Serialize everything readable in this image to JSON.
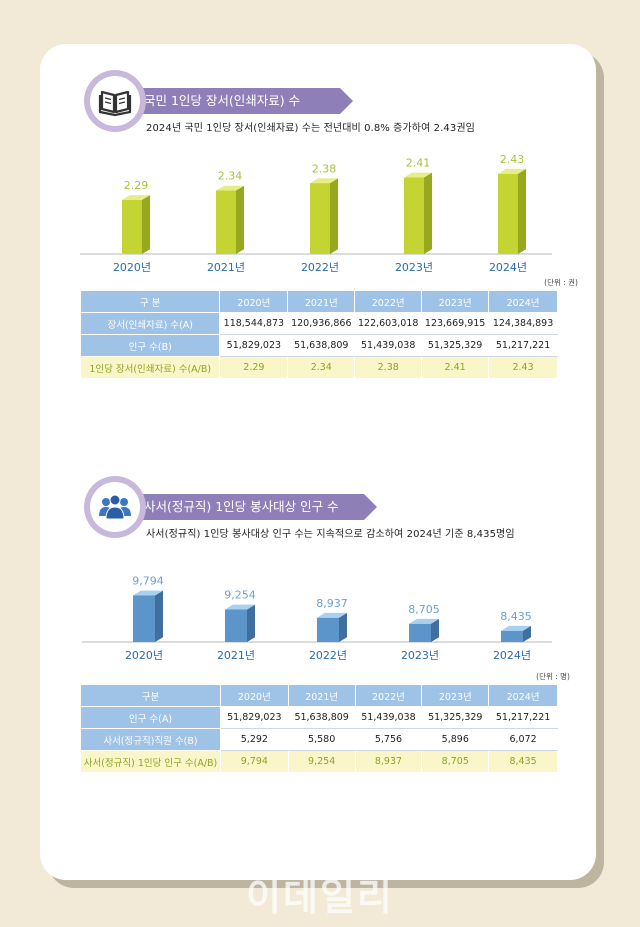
{
  "section1": {
    "title": "국민 1인당 장서(인쇄자료) 수",
    "subtitle": "2024년 국민 1인당 장서(인쇄자료) 수는 전년대비 0.8% 증가하여 2.43권임",
    "icon": "book-icon",
    "unit": "(단위 : 권)",
    "table": {
      "header": [
        "구 분",
        "2020년",
        "2021년",
        "2022년",
        "2023년",
        "2024년"
      ],
      "rows": [
        {
          "label": "장서(인쇄자료) 수(A)",
          "values": [
            "118,544,873",
            "120,936,866",
            "122,603,018",
            "123,669,915",
            "124,384,893"
          ]
        },
        {
          "label": "인구 수(B)",
          "values": [
            "51,829,023",
            "51,638,809",
            "51,439,038",
            "51,325,329",
            "51,217,221"
          ]
        }
      ],
      "result": {
        "label": "1인당 장서(인쇄자료) 수(A/B)",
        "values": [
          "2.29",
          "2.34",
          "2.38",
          "2.41",
          "2.43"
        ]
      }
    }
  },
  "section2": {
    "title": "사서(정규직) 1인당 봉사대상 인구 수",
    "subtitle": "사서(정규직) 1인당 봉사대상 인구 수는 지속적으로 감소하여 2024년 기준  8,435명임",
    "icon": "people-icon",
    "unit": "(단위 : 명)",
    "table": {
      "header": [
        "구분",
        "2020년",
        "2021년",
        "2022년",
        "2023년",
        "2024년"
      ],
      "rows": [
        {
          "label": "인구 수(A)",
          "values": [
            "51,829,023",
            "51,638,809",
            "51,439,038",
            "51,325,329",
            "51,217,221"
          ]
        },
        {
          "label": "사서(정규직)직원 수(B)",
          "values": [
            "5,292",
            "5,580",
            "5,756",
            "5,896",
            "6,072"
          ]
        }
      ],
      "result": {
        "label": "사서(정규직) 1인당 인구 수(A/B)",
        "values": [
          "9,794",
          "9,254",
          "8,937",
          "8,705",
          "8,435"
        ]
      }
    }
  },
  "colors": {
    "banner": "#8f7fb8",
    "icon_ring": "#c7b8dc",
    "bar1_front": "#c4d433",
    "bar1_side": "#97a81f",
    "bar1_top": "#e6ee8a",
    "bar1_label": "#a7c23a",
    "bar2_front": "#5b95c9",
    "bar2_side": "#3e6f9e",
    "bar2_top": "#a9d0ef",
    "bar2_label": "#6aa2d4",
    "year_label": "#2a6bb0",
    "table_header": "#9ec3e6",
    "result_row": "#fbf6c9"
  },
  "watermark": "이데일리",
  "chart_data": [
    {
      "type": "bar",
      "title": "국민 1인당 장서(인쇄자료) 수",
      "categories": [
        "2020년",
        "2021년",
        "2022년",
        "2023년",
        "2024년"
      ],
      "values": [
        2.29,
        2.34,
        2.38,
        2.41,
        2.43
      ],
      "value_labels": [
        "2.29",
        "2.34",
        "2.38",
        "2.41",
        "2.43"
      ],
      "ylabel": "",
      "unit": "권",
      "ylim": [
        2.0,
        2.45
      ],
      "grid": false,
      "legend": "none"
    },
    {
      "type": "bar",
      "title": "사서(정규직) 1인당 봉사대상 인구 수",
      "categories": [
        "2020년",
        "2021년",
        "2022년",
        "2023년",
        "2024년"
      ],
      "values": [
        9794,
        9254,
        8937,
        8705,
        8435
      ],
      "value_labels": [
        "9,794",
        "9,254",
        "8,937",
        "8,705",
        "8,435"
      ],
      "ylabel": "",
      "unit": "명",
      "ylim": [
        8000,
        9850
      ],
      "grid": false,
      "legend": "none"
    }
  ]
}
